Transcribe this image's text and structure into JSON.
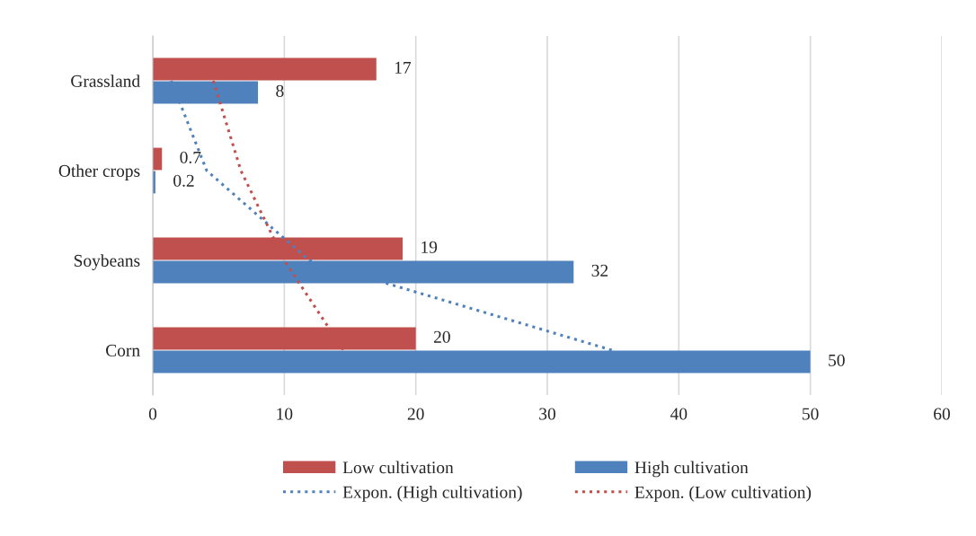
{
  "chart_data": {
    "type": "bar",
    "orientation": "horizontal",
    "categories": [
      "Grassland",
      "Other crops",
      "Soybeans",
      "Corn"
    ],
    "series": [
      {
        "name": "Low cultivation",
        "color": "#c0504d",
        "values": [
          17,
          0.7,
          19,
          20
        ],
        "value_labels": [
          "17",
          "0.7",
          "19",
          "20"
        ]
      },
      {
        "name": "High cultivation",
        "color": "#4f81bd",
        "values": [
          8,
          0.2,
          32,
          50
        ],
        "value_labels": [
          "8",
          "0.2",
          "32",
          "50"
        ]
      },
      {
        "name": "Expon. (High cultivation)",
        "type": "line",
        "line_style": "dotted",
        "color": "#4f81bd",
        "values": [
          1.4,
          4.1,
          11.9,
          34.9
        ]
      },
      {
        "name": "Expon. (Low cultivation)",
        "type": "line",
        "line_style": "dotted",
        "color": "#c0504d",
        "values": [
          4.6,
          6.7,
          10.0,
          14.5
        ]
      }
    ],
    "xlim": [
      0,
      60
    ],
    "xticks": [
      0,
      10,
      20,
      30,
      40,
      50,
      60
    ],
    "grid": "x",
    "legend": "bottom"
  }
}
